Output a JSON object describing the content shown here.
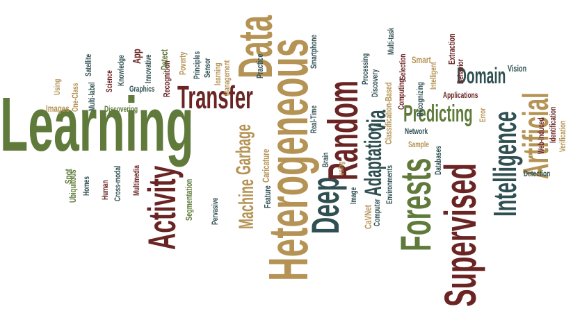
{
  "palette": {
    "green": "#5f7a3a",
    "maroon": "#6b2424",
    "tan": "#b59355",
    "teal": "#2f4f52",
    "gold": "#bfa66a"
  },
  "words": [
    {
      "text": "Learning",
      "color": "green"
    },
    {
      "text": "Transfer",
      "color": "maroon"
    },
    {
      "text": "Data",
      "color": "tan"
    },
    {
      "text": "Garbage",
      "color": "tan"
    },
    {
      "text": "Machine",
      "color": "tan"
    },
    {
      "text": "Activity",
      "color": "maroon"
    },
    {
      "text": "Heterogeneous",
      "color": "tan"
    },
    {
      "text": "Deep",
      "color": "teal"
    },
    {
      "text": "Random",
      "color": "maroon"
    },
    {
      "text": "via",
      "color": "teal"
    },
    {
      "text": "Adaptation",
      "color": "teal"
    },
    {
      "text": "Predicting",
      "color": "green"
    },
    {
      "text": "Domain",
      "color": "teal"
    },
    {
      "text": "Forests",
      "color": "green"
    },
    {
      "text": "Supervised",
      "color": "maroon"
    },
    {
      "text": "Intelligence",
      "color": "teal"
    },
    {
      "text": "Artificial",
      "color": "tan"
    },
    {
      "text": "Satellite",
      "color": "teal"
    },
    {
      "text": "Using",
      "color": "tan"
    },
    {
      "text": "Images",
      "color": "tan"
    },
    {
      "text": "One-Class",
      "color": "tan"
    },
    {
      "text": "Multi-label",
      "color": "teal"
    },
    {
      "text": "Science",
      "color": "maroon"
    },
    {
      "text": "Knowledge",
      "color": "teal"
    },
    {
      "text": "Discovering",
      "color": "green"
    },
    {
      "text": "App",
      "color": "maroon"
    },
    {
      "text": "Graphics",
      "color": "teal"
    },
    {
      "text": "Innovative",
      "color": "teal"
    },
    {
      "text": "Recognition",
      "color": "maroon"
    },
    {
      "text": "Detect",
      "color": "green"
    },
    {
      "text": "Poverty",
      "color": "tan"
    },
    {
      "text": "Principles",
      "color": "teal"
    },
    {
      "text": "Sensor",
      "color": "teal"
    },
    {
      "text": "learning",
      "color": "tan"
    },
    {
      "text": "Management",
      "color": "tan"
    },
    {
      "text": "Practice",
      "color": "teal"
    },
    {
      "text": "Caricature",
      "color": "tan"
    },
    {
      "text": "Feature",
      "color": "teal"
    },
    {
      "text": "Pervasive",
      "color": "teal"
    },
    {
      "text": "Segmentation",
      "color": "green"
    },
    {
      "text": "Multimedia",
      "color": "maroon"
    },
    {
      "text": "Cross-modal",
      "color": "teal"
    },
    {
      "text": "Human",
      "color": "maroon"
    },
    {
      "text": "Homes",
      "color": "teal"
    },
    {
      "text": "Ubiquitous",
      "color": "green"
    },
    {
      "text": "Spot",
      "color": "green"
    },
    {
      "text": "Smartphone",
      "color": "teal"
    },
    {
      "text": "Real-Time",
      "color": "teal"
    },
    {
      "text": "Brain",
      "color": "teal"
    },
    {
      "text": "using",
      "color": "tan"
    },
    {
      "text": "Image",
      "color": "teal"
    },
    {
      "text": "CaVNet",
      "color": "tan"
    },
    {
      "text": "Processing",
      "color": "teal"
    },
    {
      "text": "Discovery",
      "color": "teal"
    },
    {
      "text": "Multi-task",
      "color": "teal"
    },
    {
      "text": "Selection",
      "color": "maroon"
    },
    {
      "text": "Classification-Based",
      "color": "tan"
    },
    {
      "text": "Computing",
      "color": "maroon"
    },
    {
      "text": "Computer",
      "color": "teal"
    },
    {
      "text": "Environments",
      "color": "teal"
    },
    {
      "text": "Smart",
      "color": "tan"
    },
    {
      "text": "Recognizing",
      "color": "teal"
    },
    {
      "text": "Intelligent",
      "color": "tan"
    },
    {
      "text": "Network",
      "color": "teal"
    },
    {
      "text": "Sample",
      "color": "tan"
    },
    {
      "text": "Databases",
      "color": "teal"
    },
    {
      "text": "Extraction",
      "color": "maroon"
    },
    {
      "text": "Behavior",
      "color": "maroon"
    },
    {
      "text": "Applications",
      "color": "maroon"
    },
    {
      "text": "Error",
      "color": "tan"
    },
    {
      "text": "Vision",
      "color": "teal"
    },
    {
      "text": "Web-Induced",
      "color": "maroon"
    },
    {
      "text": "Identification",
      "color": "maroon"
    },
    {
      "text": "Verification",
      "color": "tan"
    },
    {
      "text": "Detection",
      "color": "teal"
    }
  ]
}
